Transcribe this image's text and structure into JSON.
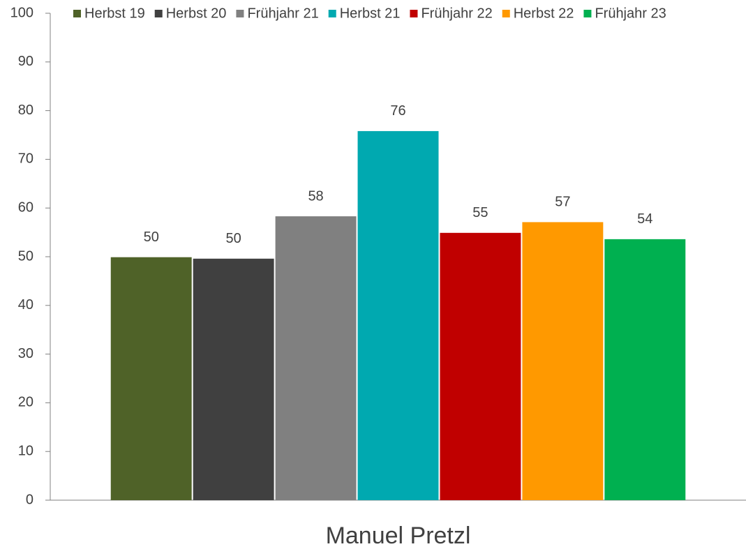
{
  "chart_data": {
    "type": "bar",
    "categories": [
      "Manuel Pretzl"
    ],
    "series": [
      {
        "name": "Herbst 19",
        "color": "#4f6228",
        "values": [
          49.9
        ],
        "value_labels": [
          "50"
        ]
      },
      {
        "name": "Herbst 20",
        "color": "#404040",
        "values": [
          49.6
        ],
        "value_labels": [
          "50"
        ]
      },
      {
        "name": "Frühjahr 21",
        "color": "#808080",
        "values": [
          58.3
        ],
        "value_labels": [
          "58"
        ]
      },
      {
        "name": "Herbst 21",
        "color": "#00a9b0",
        "values": [
          75.8
        ],
        "value_labels": [
          "76"
        ]
      },
      {
        "name": "Frühjahr 22",
        "color": "#c00000",
        "values": [
          54.9
        ],
        "value_labels": [
          "55"
        ]
      },
      {
        "name": "Herbst 22",
        "color": "#ff9900",
        "values": [
          57.1
        ],
        "value_labels": [
          "57"
        ]
      },
      {
        "name": "Frühjahr 23",
        "color": "#00b050",
        "values": [
          53.6
        ],
        "value_labels": [
          "54"
        ]
      }
    ],
    "ylim": [
      0,
      100
    ],
    "yticks": [
      0,
      10,
      20,
      30,
      40,
      50,
      60,
      70,
      80,
      90,
      100
    ],
    "legend": "top",
    "grid": false
  }
}
